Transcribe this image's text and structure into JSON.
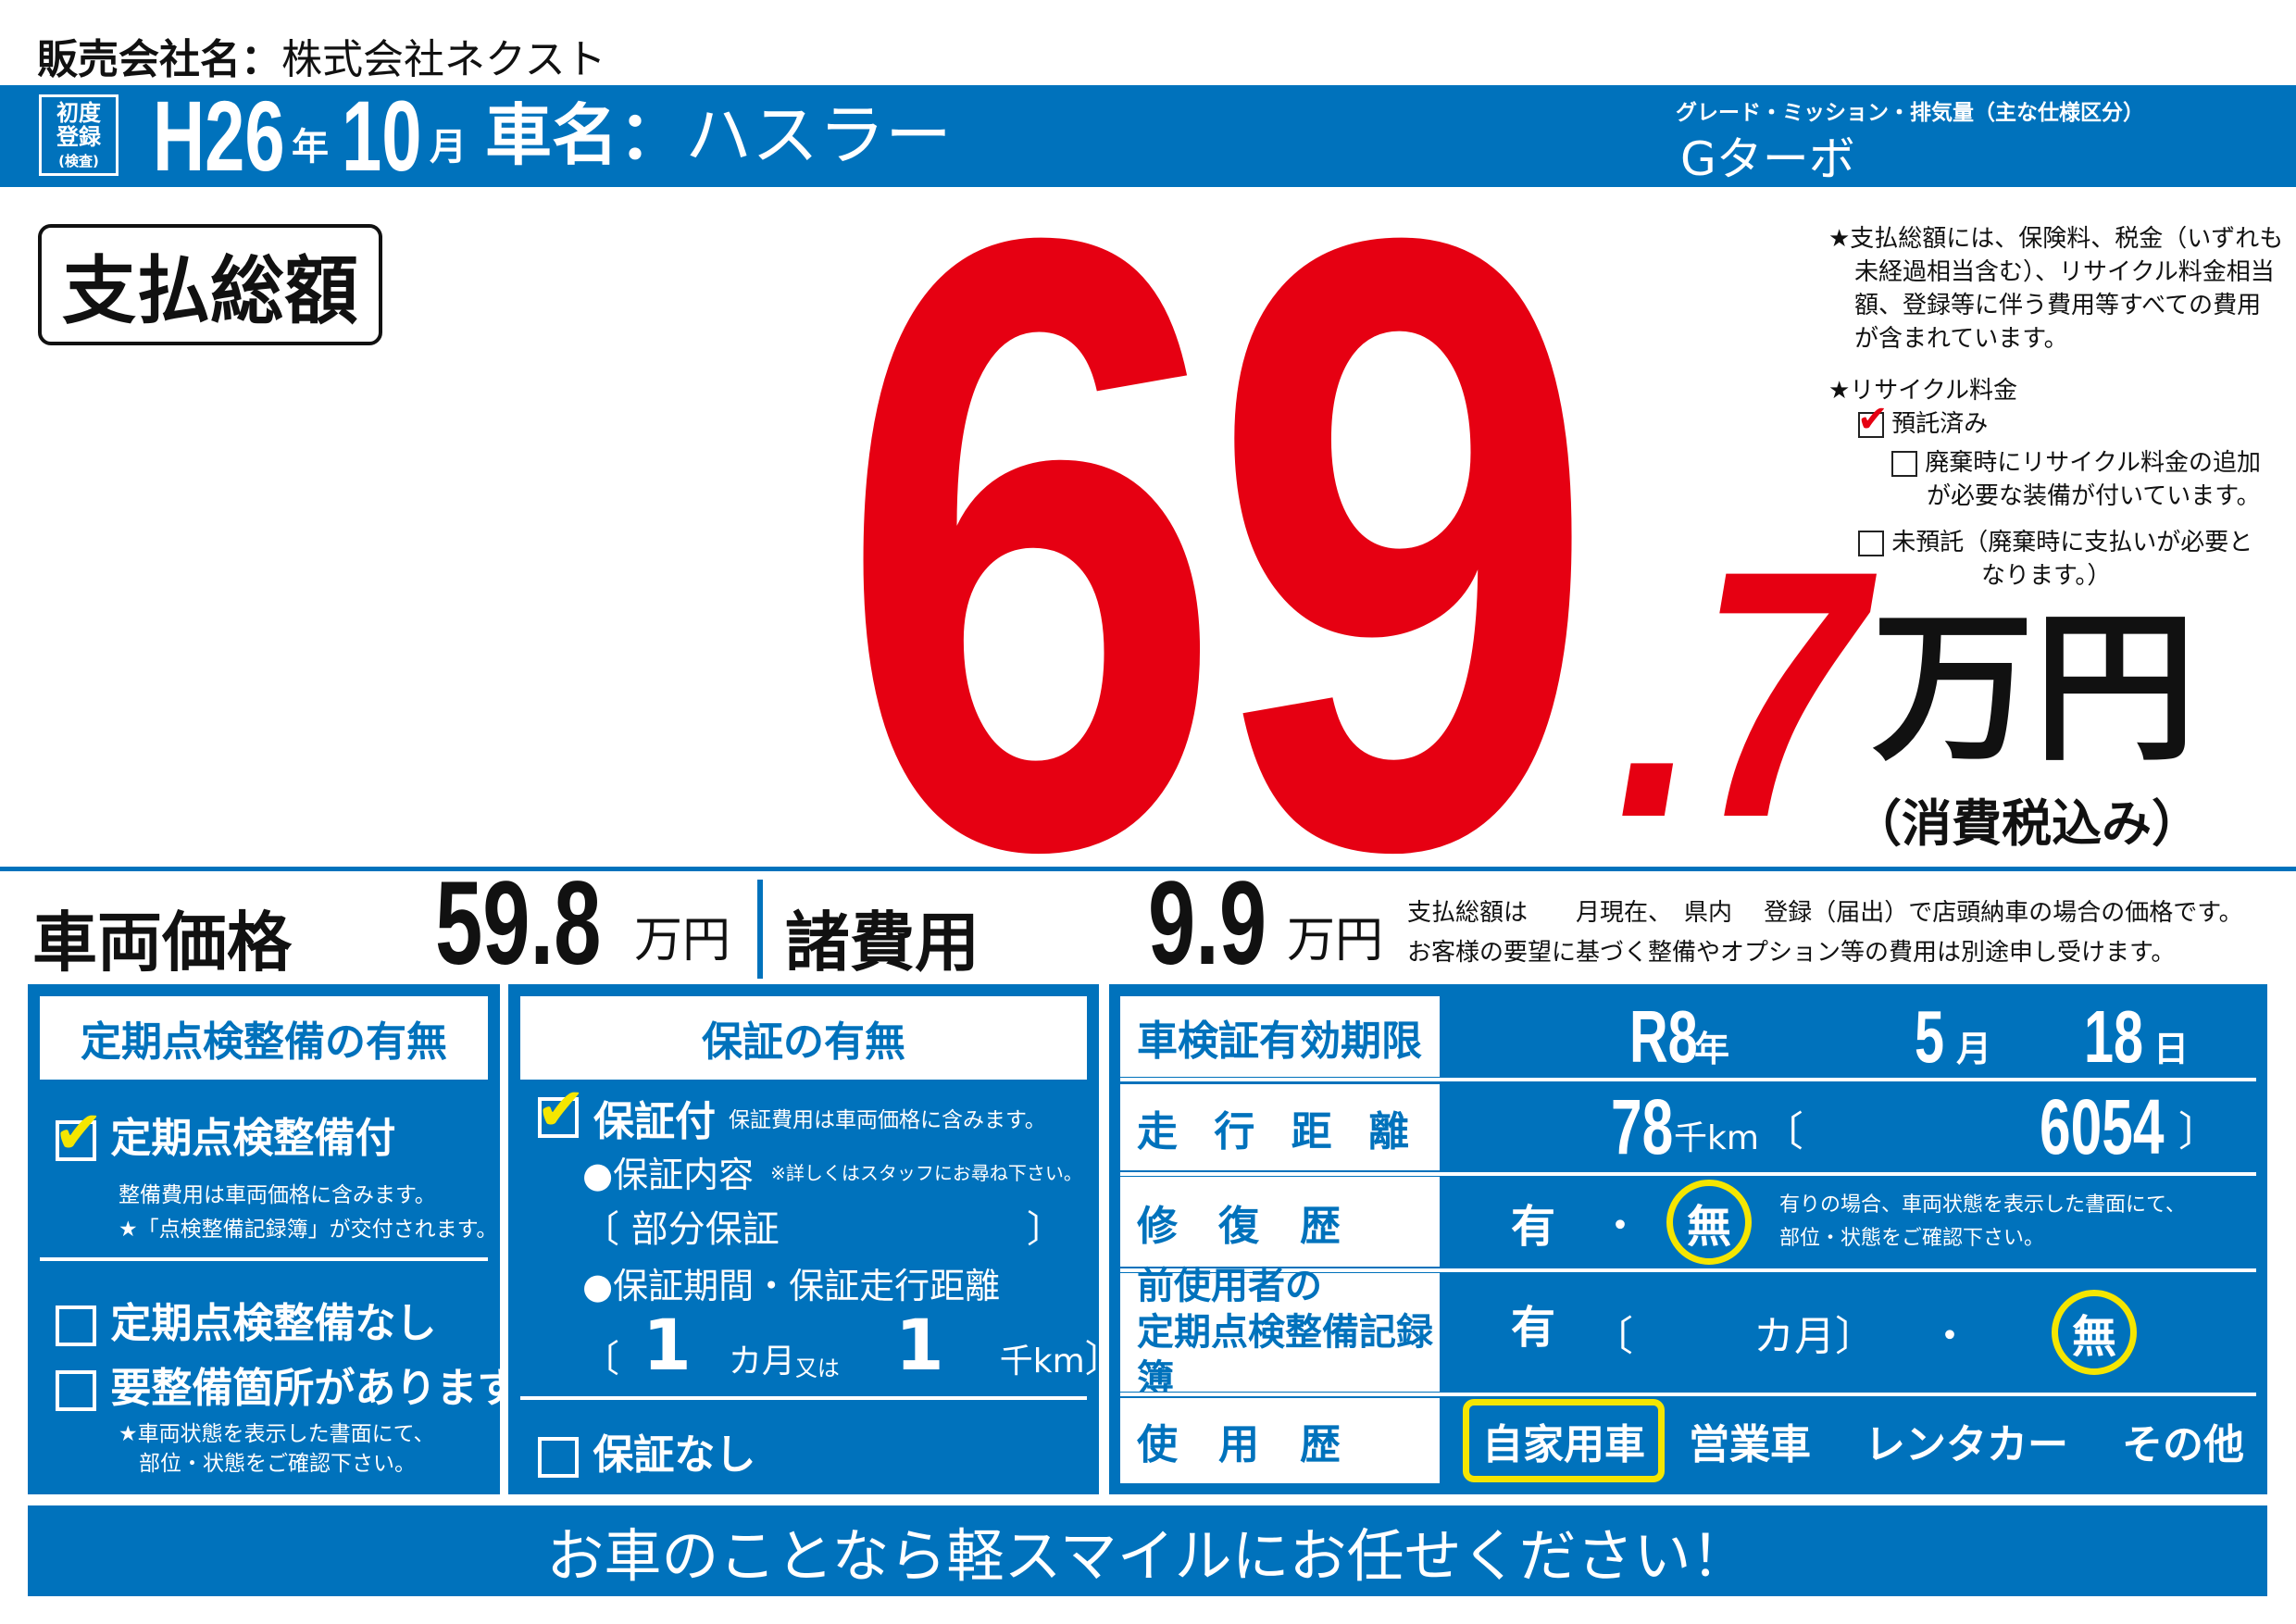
{
  "colors": {
    "blue": "#0072bc",
    "red": "#e60012",
    "yellow": "#f5e600"
  },
  "seller": {
    "label": "販売会社名：",
    "name": "株式会社ネクスト"
  },
  "header": {
    "reg_box": [
      "初度",
      "登録",
      "(検査)"
    ],
    "era_year": "H26",
    "year_unit": "年",
    "month": "10",
    "month_unit": "月",
    "car_label": "車名：",
    "car_name": "ハスラー",
    "grade_label": "グレード・ミッション・排気量（主な仕様区分）",
    "grade": "Gターボ"
  },
  "total": {
    "label": "支払総額",
    "integer": "69",
    "decimal": ".7",
    "unit": "万円",
    "tax": "（消費税込み）"
  },
  "notes": {
    "note1": [
      "★支払総額には、保険料、税金（いずれも",
      "未経過相当含む）、リサイクル料金相当",
      "額、登録等に伴う費用等すべての費用",
      "が含まれています。"
    ],
    "recycle_title": "★リサイクル料金",
    "opt1": "預託済み",
    "opt1_checked": true,
    "opt2": [
      "廃棄時にリサイクル料金の追加",
      "が必要な装備が付いています。"
    ],
    "opt2_checked": false,
    "opt3": [
      "未預託（廃棄時に支払いが必要と",
      "なります。）"
    ],
    "opt3_checked": false
  },
  "prices": {
    "vehicle_label": "車両価格",
    "vehicle_value": "59.8",
    "vehicle_unit": "万円",
    "fees_label": "諸費用",
    "fees_value": "9.9",
    "fees_unit": "万円",
    "note_line1": "支払総額は　　月現在、　県内　 登録（届出）で店頭納車の場合の価格です。",
    "note_line2": "お客様の要望に基づく整備やオプション等の費用は別途申し受けます。"
  },
  "inspection": {
    "title": "定期点検整備の有無",
    "opt_yes": "定期点検整備付",
    "opt_yes_checked": true,
    "yes_note1": "整備費用は車両価格に含みます。",
    "yes_note2": "★「点検整備記録簿」が交付されます。",
    "opt_no": "定期点検整備なし",
    "opt_repair": "要整備箇所があります",
    "repair_note1": "★車両状態を表示した書面にて、",
    "repair_note2": "部位・状態をご確認下さい。"
  },
  "warranty": {
    "title": "保証の有無",
    "opt_yes": "保証付",
    "opt_yes_checked": true,
    "yes_note": "保証費用は車両価格に含みます。",
    "content_label": "●保証内容",
    "content_note": "※詳しくはスタッフにお尋ね下さい。",
    "content_value": "部分保証",
    "period_label": "●保証期間・保証走行距離",
    "months": "1",
    "months_unit": "カ月",
    "or": "又は",
    "km": "1",
    "km_unit": "千km",
    "opt_no": "保証なし"
  },
  "details": {
    "shaken_label": "車検証有効期限",
    "shaken_year": "R8",
    "year_unit": "年",
    "shaken_month": "5",
    "month_unit": "月",
    "shaken_day": "18",
    "day_unit": "日",
    "mileage_label": "走 行 距 離",
    "mileage_k": "78",
    "mileage_unit": "千km",
    "mileage_exact": "6054",
    "repair_label": "修　復　歴",
    "repair_yes": "有",
    "dot": "・",
    "repair_no": "無",
    "repair_selected": "無",
    "repair_note1": "有りの場合、車両状態を表示した書面にて、",
    "repair_note2": "部位・状態をご確認下さい。",
    "record_label1": "前使用者の",
    "record_label2": "定期点検整備記録簿",
    "record_yes": "有",
    "record_months_unit": "カ月",
    "record_no": "無",
    "record_selected": "無",
    "usage_label": "使　用　歴",
    "usage_options": [
      "自家用車",
      "営業車",
      "レンタカー",
      "その他"
    ],
    "usage_selected": "自家用車"
  },
  "footer": {
    "slogan": "お車のことなら軽スマイルにお任せください！"
  }
}
